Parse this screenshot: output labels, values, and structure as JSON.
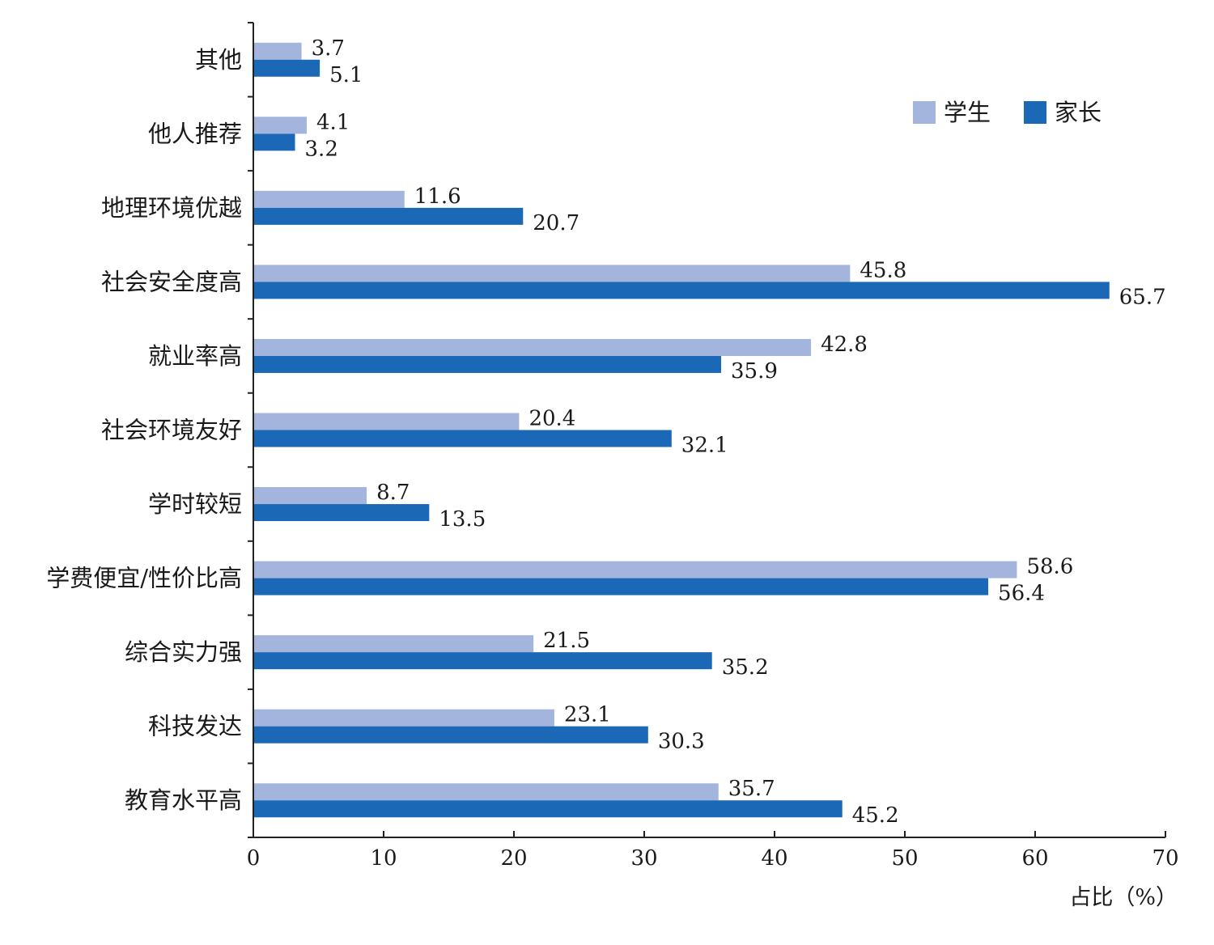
{
  "chart_data": {
    "type": "bar",
    "orientation": "horizontal",
    "categories": [
      "其他",
      "他人推荐",
      "地理环境优越",
      "社会安全度高",
      "就业率高",
      "社会环境友好",
      "学时较短",
      "学费便宜/性价比高",
      "综合实力强",
      "科技发达",
      "教育水平高"
    ],
    "series": [
      {
        "name": "学生",
        "color": "#a3b4dd",
        "values": [
          3.7,
          4.1,
          11.6,
          45.8,
          42.8,
          20.4,
          8.7,
          58.6,
          21.5,
          23.1,
          35.7
        ]
      },
      {
        "name": "家长",
        "color": "#1b69b6",
        "values": [
          5.1,
          3.2,
          20.7,
          65.7,
          35.9,
          32.1,
          13.5,
          56.4,
          35.2,
          30.3,
          45.2
        ]
      }
    ],
    "value_labels": {
      "学生": [
        "3.7",
        "4.1",
        "11.6",
        "45.8",
        "42.8",
        "20.4",
        "8.7",
        "58.6",
        "21.5",
        "23.1",
        "35.7"
      ],
      "家长": [
        "5.1",
        "3.2",
        "20.7",
        "65.7",
        "35.9",
        "32.1",
        "13.5",
        "56.4",
        "35.2",
        "30.3",
        "45.2"
      ]
    },
    "xlim": [
      0,
      70
    ],
    "xticks": [
      0,
      10,
      20,
      30,
      40,
      50,
      60,
      70
    ],
    "xtick_labels": [
      "0",
      "10",
      "20",
      "30",
      "40",
      "50",
      "60",
      "70"
    ],
    "xlabel": "占比（%）",
    "ylabel": "",
    "title": "",
    "grid": false,
    "legend_position": "top-right"
  }
}
